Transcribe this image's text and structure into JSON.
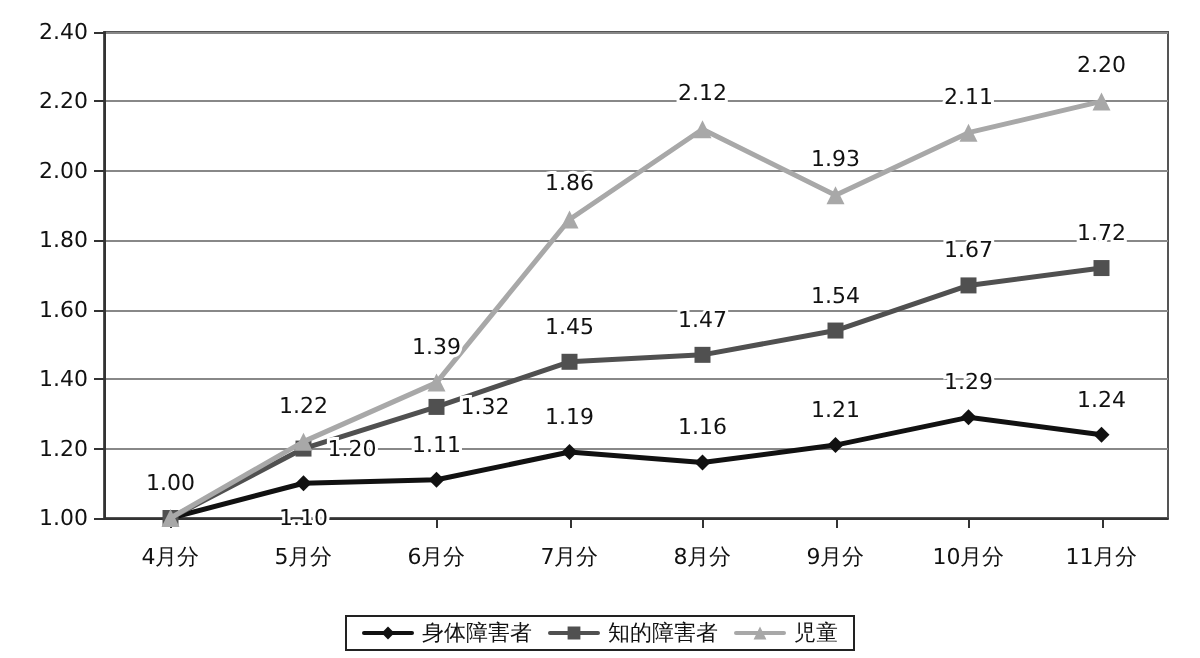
{
  "chart_data": {
    "type": "line",
    "categories": [
      "4月分",
      "5月分",
      "6月分",
      "7月分",
      "8月分",
      "9月分",
      "10月分",
      "11月分"
    ],
    "series": [
      {
        "name": "身体障害者",
        "color": "#111111",
        "marker": "diamond",
        "values": [
          1.0,
          1.1,
          1.11,
          1.19,
          1.16,
          1.21,
          1.29,
          1.24
        ],
        "value_labels": [
          "1.00",
          "1.10",
          "1.11",
          "1.19",
          "1.16",
          "1.21",
          "1.29",
          "1.24"
        ]
      },
      {
        "name": "知的障害者",
        "color": "#505050",
        "marker": "square",
        "values": [
          1.0,
          1.2,
          1.32,
          1.45,
          1.47,
          1.54,
          1.67,
          1.72
        ],
        "value_labels": [
          null,
          "1.20",
          "1.32",
          "1.45",
          "1.47",
          "1.54",
          "1.67",
          "1.72"
        ]
      },
      {
        "name": "児童",
        "color": "#a8a8a8",
        "marker": "triangle",
        "values": [
          1.0,
          1.22,
          1.39,
          1.86,
          2.12,
          1.93,
          2.11,
          2.2
        ],
        "value_labels": [
          null,
          "1.22",
          "1.39",
          "1.86",
          "2.12",
          "1.93",
          "2.11",
          "2.20"
        ]
      }
    ],
    "ylim": [
      1.0,
      2.4
    ],
    "yticks": [
      {
        "value": 1.0,
        "label": "1.00"
      },
      {
        "value": 1.2,
        "label": "1.20"
      },
      {
        "value": 1.4,
        "label": "1.40"
      },
      {
        "value": 1.6,
        "label": "1.60"
      },
      {
        "value": 1.8,
        "label": "1.80"
      },
      {
        "value": 2.0,
        "label": "2.00"
      },
      {
        "value": 2.2,
        "label": "2.20"
      },
      {
        "value": 2.4,
        "label": "2.40"
      }
    ],
    "grid": "y",
    "legend": "bottom",
    "line_style": "solid"
  }
}
